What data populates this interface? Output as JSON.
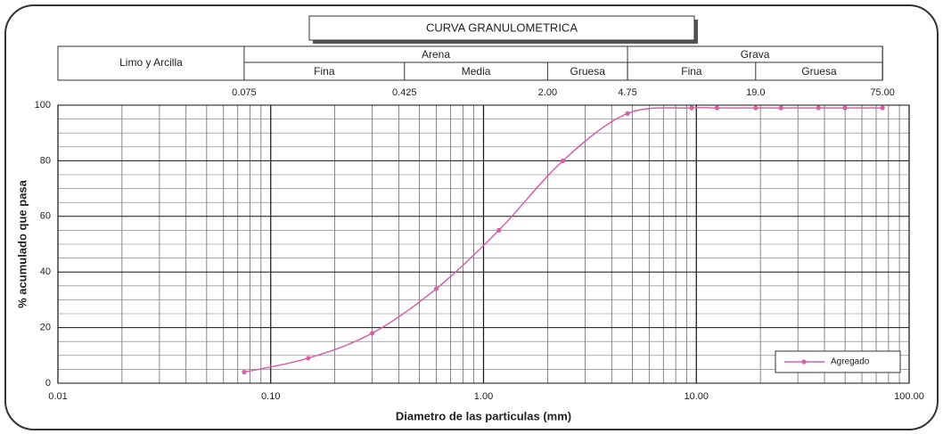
{
  "chart_data": {
    "type": "line",
    "title": "CURVA GRANULOMETRICA",
    "soil_classes": [
      {
        "label": "Limo y Arcilla"
      },
      {
        "label": "Arena",
        "parts": [
          "Fina",
          "Media",
          "Gruesa"
        ]
      },
      {
        "label": "Grava",
        "parts": [
          "Fina",
          "Gruesa"
        ]
      }
    ],
    "sieves": [
      {
        "value": 0.075,
        "label": "0.075"
      },
      {
        "value": 0.425,
        "label": "0.425"
      },
      {
        "value": 2,
        "label": "2.00"
      },
      {
        "value": 4.75,
        "label": "4.75"
      },
      {
        "value": 19,
        "label": "19.0"
      },
      {
        "value": 75,
        "label": "75.00"
      }
    ],
    "x_label": "Diametro de las particulas (mm)",
    "y_label": "% acumulado que pasa",
    "x": [
      0.075,
      0.15,
      0.3,
      0.6,
      1.18,
      2.36,
      4.75,
      9.5,
      12.5,
      19,
      25,
      37.5,
      50,
      75
    ],
    "series": [
      {
        "name": "Agregado",
        "color": "#d660a8",
        "values": [
          4,
          9,
          18,
          34,
          55,
          80,
          97,
          99,
          99,
          99,
          99,
          99,
          99,
          99
        ]
      }
    ],
    "xlim": [
      0.01,
      100
    ],
    "xticks": [
      {
        "value": 0.01,
        "label": "0.01"
      },
      {
        "value": 0.1,
        "label": "0.10"
      },
      {
        "value": 1,
        "label": "1.00"
      },
      {
        "value": 10,
        "label": "10.00"
      },
      {
        "value": 100,
        "label": "100.00"
      }
    ],
    "ylim": [
      0,
      100
    ],
    "yticks": [
      0,
      20,
      40,
      60,
      80,
      100
    ],
    "xscale": "log",
    "grid": true,
    "legend": "lower right"
  }
}
